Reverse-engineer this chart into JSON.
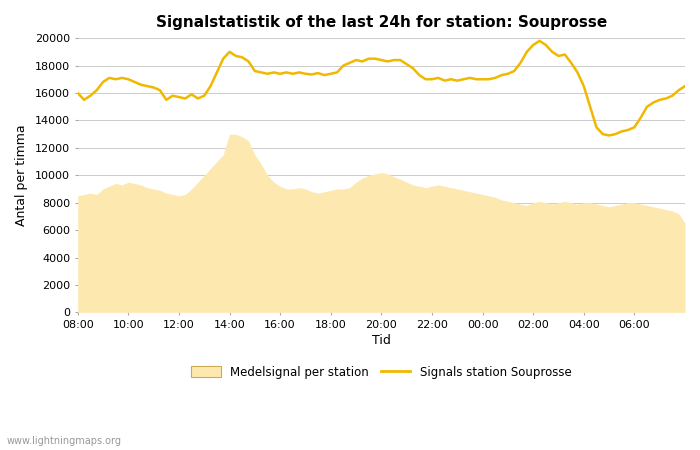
{
  "title": "Signalstatistik of the last 24h for station: Souprosse",
  "xlabel": "Tid",
  "ylabel": "Antal per timma",
  "background_color": "#ffffff",
  "plot_bg_color": "#ffffff",
  "grid_color": "#cccccc",
  "ylim": [
    0,
    20000
  ],
  "yticks": [
    0,
    2000,
    4000,
    6000,
    8000,
    10000,
    12000,
    14000,
    16000,
    18000,
    20000
  ],
  "xtick_positions": [
    8,
    10,
    12,
    14,
    16,
    18,
    20,
    22,
    24,
    26,
    28,
    30
  ],
  "x_labels": [
    "08:00",
    "10:00",
    "12:00",
    "14:00",
    "16:00",
    "18:00",
    "20:00",
    "22:00",
    "00:00",
    "02:00",
    "04:00",
    "06:00"
  ],
  "line_color": "#f0b800",
  "fill_color": "#fde9b0",
  "fill_alpha": 1.0,
  "line_width": 1.8,
  "watermark": "www.lightningmaps.org",
  "legend_line_label": "Signals station Souprosse",
  "legend_fill_label": "Medelsignal per station",
  "time_hours": [
    8.0,
    8.25,
    8.5,
    8.75,
    9.0,
    9.25,
    9.5,
    9.75,
    10.0,
    10.25,
    10.5,
    10.75,
    11.0,
    11.25,
    11.5,
    11.75,
    12.0,
    12.25,
    12.5,
    12.75,
    13.0,
    13.25,
    13.5,
    13.75,
    14.0,
    14.25,
    14.5,
    14.75,
    15.0,
    15.25,
    15.5,
    15.75,
    16.0,
    16.25,
    16.5,
    16.75,
    17.0,
    17.25,
    17.5,
    17.75,
    18.0,
    18.25,
    18.5,
    18.75,
    19.0,
    19.25,
    19.5,
    19.75,
    20.0,
    20.25,
    20.5,
    20.75,
    21.0,
    21.25,
    21.5,
    21.75,
    22.0,
    22.25,
    22.5,
    22.75,
    23.0,
    23.25,
    23.5,
    23.75,
    24.0,
    24.25,
    24.5,
    24.75,
    25.0,
    25.25,
    25.5,
    25.75,
    26.0,
    26.25,
    26.5,
    26.75,
    27.0,
    27.25,
    27.5,
    27.75,
    28.0,
    28.25,
    28.5,
    28.75,
    29.0,
    29.25,
    29.5,
    29.75,
    30.0,
    30.25,
    30.5,
    30.75,
    31.0,
    31.25,
    31.5,
    31.75,
    32.0
  ],
  "line_values": [
    16000,
    15500,
    15800,
    16200,
    16800,
    17100,
    17000,
    17100,
    17000,
    16800,
    16600,
    16500,
    16400,
    16200,
    15500,
    15800,
    15700,
    15600,
    15900,
    15600,
    15800,
    16500,
    17500,
    18500,
    19000,
    18700,
    18600,
    18300,
    17600,
    17500,
    17400,
    17500,
    17400,
    17500,
    17400,
    17500,
    17400,
    17350,
    17450,
    17300,
    17400,
    17500,
    18000,
    18200,
    18400,
    18300,
    18500,
    18500,
    18400,
    18300,
    18400,
    18400,
    18100,
    17800,
    17300,
    17000,
    17000,
    17100,
    16900,
    17000,
    16900,
    17000,
    17100,
    17000,
    17000,
    17000,
    17100,
    17300,
    17400,
    17600,
    18200,
    19000,
    19500,
    19800,
    19500,
    19000,
    18700,
    18800,
    18200,
    17500,
    16500,
    15000,
    13500,
    13000,
    12900,
    13000,
    13200,
    13300,
    13500,
    14200,
    15000,
    15300,
    15500,
    15600,
    15800,
    16200,
    16500
  ],
  "fill_values": [
    8500,
    8600,
    8700,
    8600,
    9000,
    9200,
    9400,
    9300,
    9500,
    9400,
    9300,
    9100,
    9000,
    8900,
    8700,
    8600,
    8500,
    8600,
    9000,
    9500,
    10000,
    10500,
    11000,
    11500,
    13000,
    13000,
    12800,
    12500,
    11500,
    10800,
    10000,
    9500,
    9200,
    9000,
    9000,
    9100,
    9000,
    8800,
    8700,
    8800,
    8900,
    9000,
    9000,
    9100,
    9500,
    9800,
    10000,
    10100,
    10200,
    10100,
    9900,
    9700,
    9500,
    9300,
    9200,
    9100,
    9200,
    9300,
    9200,
    9100,
    9000,
    8900,
    8800,
    8700,
    8600,
    8500,
    8400,
    8200,
    8100,
    8000,
    7900,
    7800,
    8000,
    8100,
    8000,
    7900,
    8000,
    8100,
    8000,
    7900,
    8000,
    8000,
    7900,
    7800,
    7700,
    7800,
    7900,
    8000,
    8000,
    7900,
    7800,
    7700,
    7600,
    7500,
    7400,
    7200,
    6500
  ]
}
